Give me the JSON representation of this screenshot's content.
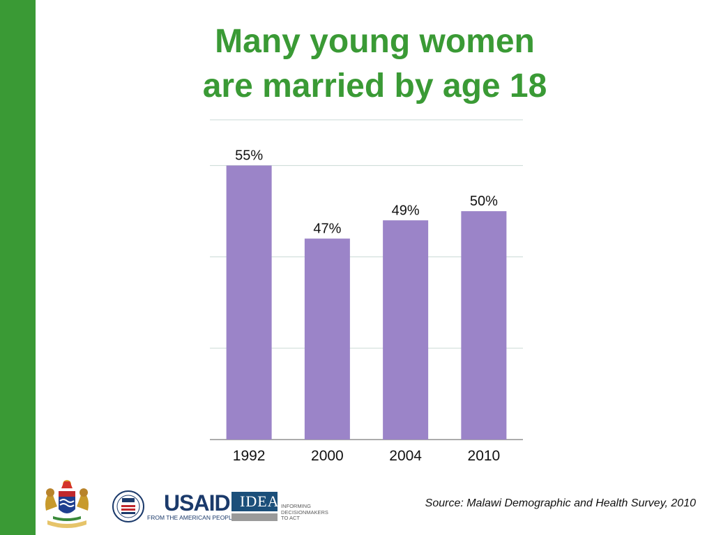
{
  "slide": {
    "title_line1": "Many young women",
    "title_line2": "are married by age 18",
    "source": "Source: Malawi Demographic and Health Survey, 2010",
    "accent_color": "#3a9a35"
  },
  "logos": {
    "usaid_name": "USAID",
    "usaid_tagline": "FROM THE AMERICAN PEOPLE",
    "idea_name": "IDEA",
    "idea_tagline": "INFORMING DECISIONMAKERS TO ACT"
  },
  "chart_data": {
    "type": "bar",
    "categories": [
      "1992",
      "2000",
      "2004",
      "2010"
    ],
    "values": [
      55,
      47,
      49,
      50
    ],
    "data_labels": [
      "55%",
      "47%",
      "49%",
      "50%"
    ],
    "title": "",
    "xlabel": "",
    "ylabel": "",
    "ylim": [
      25,
      60
    ],
    "gridlines": [
      25,
      35,
      45,
      55,
      60
    ],
    "grid": true,
    "bar_color": "#9b84c8"
  }
}
